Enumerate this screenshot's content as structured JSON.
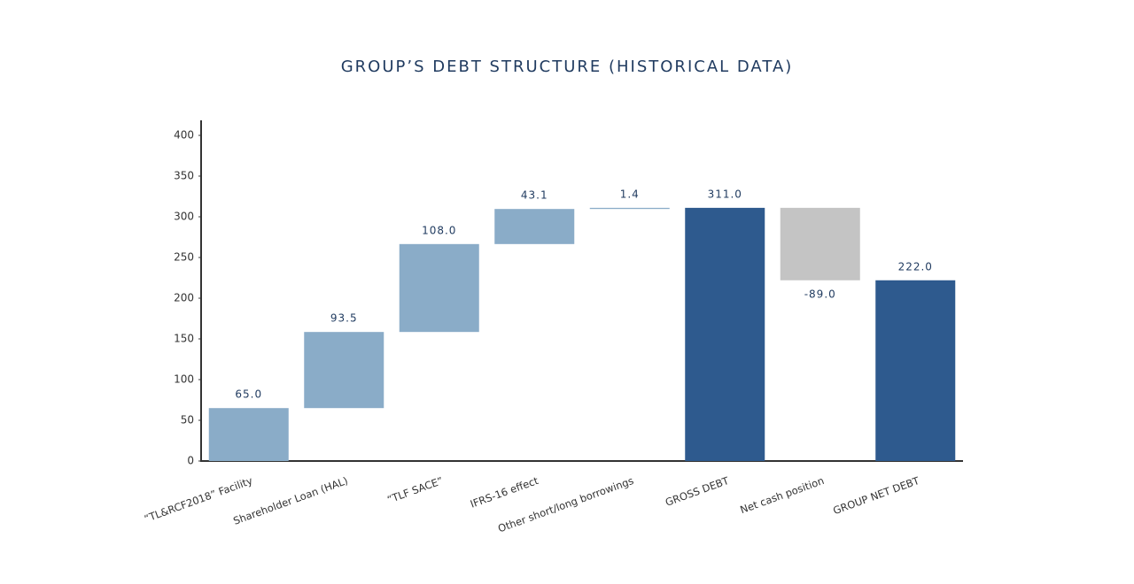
{
  "chart_data": {
    "type": "waterfall",
    "title": "GROUP’S DEBT STRUCTURE (HISTORICAL DATA)",
    "categories": [
      "“TL&RCF2018” Facility",
      "Shareholder Loan (HAL)",
      "“TLF SACE”",
      "IFRS-16 effect",
      "Other short/long borrowings",
      "GROSS DEBT",
      "Net cash position",
      "GROUP NET DEBT"
    ],
    "values": [
      65.0,
      93.5,
      108.0,
      43.1,
      1.4,
      311.0,
      -89.0,
      222.0
    ],
    "value_labels": [
      "65.0",
      "93.5",
      "108.0",
      "43.1",
      "1.4",
      "311.0",
      "-89.0",
      "222.0"
    ],
    "measures": [
      "relative",
      "relative",
      "relative",
      "relative",
      "relative",
      "total",
      "relative",
      "total"
    ],
    "increase_color": "#8aacc8",
    "decrease_color": "#c4c4c4",
    "total_color": "#2e5a8e",
    "ylim": [
      0,
      420
    ],
    "yticks": [
      0,
      50,
      100,
      150,
      200,
      250,
      300,
      350,
      400
    ],
    "grid": false
  }
}
